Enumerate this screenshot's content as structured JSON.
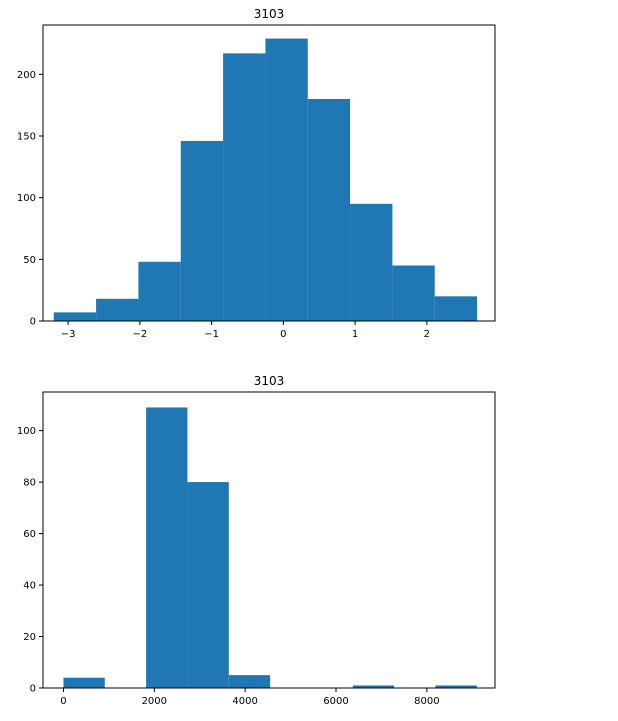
{
  "chart_data": [
    {
      "type": "bar",
      "title": "3103",
      "xlabel": "",
      "ylabel": "",
      "xlim": [
        -3.35,
        2.95
      ],
      "ylim": [
        0,
        240
      ],
      "xticks": [
        -3,
        -2,
        -1,
        0,
        1,
        2
      ],
      "xtick_labels": [
        "−3",
        "−2",
        "−1",
        "0",
        "1",
        "2"
      ],
      "yticks": [
        0,
        50,
        100,
        150,
        200
      ],
      "ytick_labels": [
        "0",
        "50",
        "100",
        "150",
        "200"
      ],
      "grid": false,
      "color": "#1f77b4",
      "bins": [
        {
          "x0": -3.2,
          "x1": -2.61,
          "count": 7
        },
        {
          "x0": -2.61,
          "x1": -2.02,
          "count": 18
        },
        {
          "x0": -2.02,
          "x1": -1.43,
          "count": 48
        },
        {
          "x0": -1.43,
          "x1": -0.84,
          "count": 146
        },
        {
          "x0": -0.84,
          "x1": -0.25,
          "count": 217
        },
        {
          "x0": -0.25,
          "x1": 0.34,
          "count": 229
        },
        {
          "x0": 0.34,
          "x1": 0.93,
          "count": 180
        },
        {
          "x0": 0.93,
          "x1": 1.52,
          "count": 95
        },
        {
          "x0": 1.52,
          "x1": 2.11,
          "count": 45
        },
        {
          "x0": 2.11,
          "x1": 2.7,
          "count": 20
        }
      ]
    },
    {
      "type": "bar",
      "title": "3103",
      "xlabel": "",
      "ylabel": "",
      "xlim": [
        -450,
        9500
      ],
      "ylim": [
        0,
        115
      ],
      "xticks": [
        0,
        2000,
        4000,
        6000,
        8000
      ],
      "xtick_labels": [
        "0",
        "2000",
        "4000",
        "6000",
        "8000"
      ],
      "yticks": [
        0,
        20,
        40,
        60,
        80,
        100
      ],
      "ytick_labels": [
        "0",
        "20",
        "40",
        "60",
        "80",
        "100"
      ],
      "grid": false,
      "color": "#1f77b4",
      "bins": [
        {
          "x0": 0,
          "x1": 910,
          "count": 4
        },
        {
          "x0": 910,
          "x1": 1820,
          "count": 0
        },
        {
          "x0": 1820,
          "x1": 2730,
          "count": 109
        },
        {
          "x0": 2730,
          "x1": 3640,
          "count": 80
        },
        {
          "x0": 3640,
          "x1": 4550,
          "count": 5
        },
        {
          "x0": 4550,
          "x1": 5460,
          "count": 0
        },
        {
          "x0": 5460,
          "x1": 6370,
          "count": 0
        },
        {
          "x0": 6370,
          "x1": 7280,
          "count": 1
        },
        {
          "x0": 7280,
          "x1": 8190,
          "count": 0
        },
        {
          "x0": 8190,
          "x1": 9100,
          "count": 1
        }
      ]
    }
  ]
}
